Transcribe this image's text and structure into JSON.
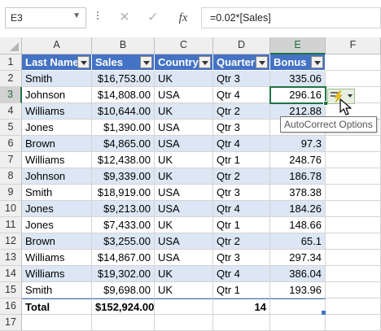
{
  "formula_bar": {
    "name_box": "E3",
    "cancel_icon": "✕",
    "enter_icon": "✓",
    "fx_label": "fx",
    "formula": "=0.02*[Sales]"
  },
  "columns": [
    "A",
    "B",
    "C",
    "D",
    "E",
    "F"
  ],
  "selected_column": "E",
  "selected_row": "3",
  "table": {
    "headers": [
      "Last Name",
      "Sales",
      "Country",
      "Quarter",
      "Bonus"
    ],
    "rows": [
      {
        "num": "2",
        "last_name": "Smith",
        "sales": "$16,753.00",
        "country": "UK",
        "quarter": "Qtr 3",
        "bonus": "335.06"
      },
      {
        "num": "3",
        "last_name": "Johnson",
        "sales": "$14,808.00",
        "country": "USA",
        "quarter": "Qtr 4",
        "bonus": "296.16"
      },
      {
        "num": "4",
        "last_name": "Williams",
        "sales": "$10,644.00",
        "country": "UK",
        "quarter": "Qtr 2",
        "bonus": "212.88"
      },
      {
        "num": "5",
        "last_name": "Jones",
        "sales": "$1,390.00",
        "country": "USA",
        "quarter": "Qtr 3",
        "bonus": "27.8"
      },
      {
        "num": "6",
        "last_name": "Brown",
        "sales": "$4,865.00",
        "country": "USA",
        "quarter": "Qtr 4",
        "bonus": "97.3"
      },
      {
        "num": "7",
        "last_name": "Williams",
        "sales": "$12,438.00",
        "country": "UK",
        "quarter": "Qtr 1",
        "bonus": "248.76"
      },
      {
        "num": "8",
        "last_name": "Johnson",
        "sales": "$9,339.00",
        "country": "UK",
        "quarter": "Qtr 2",
        "bonus": "186.78"
      },
      {
        "num": "9",
        "last_name": "Smith",
        "sales": "$18,919.00",
        "country": "USA",
        "quarter": "Qtr 3",
        "bonus": "378.38"
      },
      {
        "num": "10",
        "last_name": "Jones",
        "sales": "$9,213.00",
        "country": "USA",
        "quarter": "Qtr 4",
        "bonus": "184.26"
      },
      {
        "num": "11",
        "last_name": "Jones",
        "sales": "$7,433.00",
        "country": "UK",
        "quarter": "Qtr 1",
        "bonus": "148.66"
      },
      {
        "num": "12",
        "last_name": "Brown",
        "sales": "$3,255.00",
        "country": "USA",
        "quarter": "Qtr 2",
        "bonus": "65.1"
      },
      {
        "num": "13",
        "last_name": "Williams",
        "sales": "$14,867.00",
        "country": "USA",
        "quarter": "Qtr 3",
        "bonus": "297.34"
      },
      {
        "num": "14",
        "last_name": "Williams",
        "sales": "$19,302.00",
        "country": "UK",
        "quarter": "Qtr 4",
        "bonus": "386.04"
      },
      {
        "num": "15",
        "last_name": "Smith",
        "sales": "$9,698.00",
        "country": "UK",
        "quarter": "Qtr 1",
        "bonus": "193.96"
      }
    ],
    "total_row": {
      "num": "16",
      "label": "Total",
      "sales": "$152,924.00",
      "quarter": "14"
    }
  },
  "header_row_num": "1",
  "extra_row_num": "17",
  "autocorrect": {
    "tooltip": "AutoCorrect Options",
    "icon": "lightning-icon"
  },
  "colors": {
    "header_fill": "#4472c4",
    "band_fill": "#dce6f4",
    "selection": "#217346"
  }
}
